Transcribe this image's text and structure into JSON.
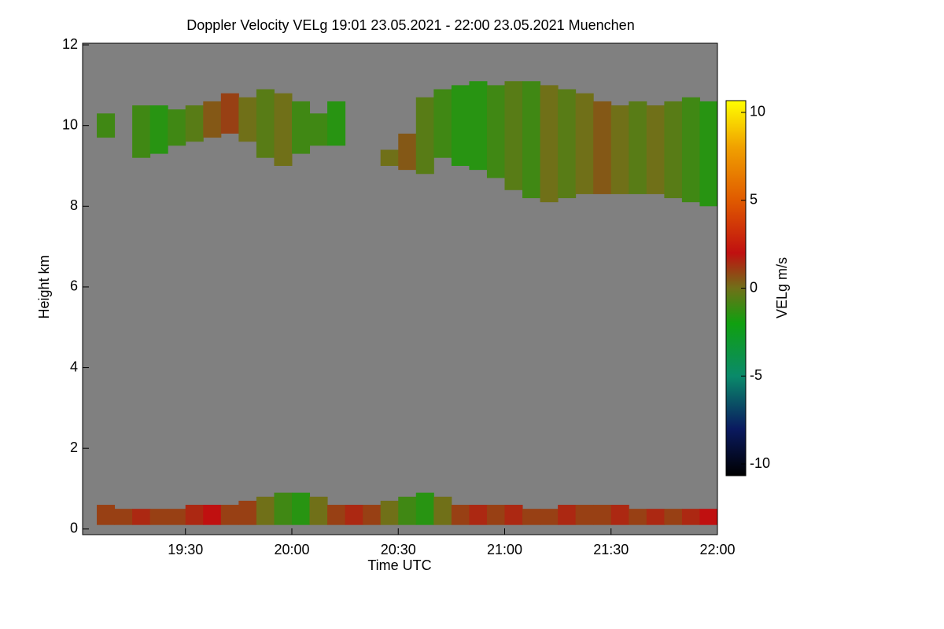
{
  "chart_data": {
    "type": "heatmap",
    "title": "Doppler Velocity VELg   19:01 23.05.2021 - 22:00 23.05.2021 Muenchen",
    "xlabel": "Time UTC",
    "ylabel": "Height km",
    "colorbar_label": "VELg m/s",
    "background": "#808080",
    "xlim": [
      1141,
      1320
    ],
    "xticks": [
      {
        "value": 1170,
        "label": "19:30"
      },
      {
        "value": 1200,
        "label": "20:00"
      },
      {
        "value": 1230,
        "label": "20:30"
      },
      {
        "value": 1260,
        "label": "21:00"
      },
      {
        "value": 1290,
        "label": "21:30"
      },
      {
        "value": 1320,
        "label": "22:00"
      }
    ],
    "ylim": [
      -0.14,
      12.04
    ],
    "yticks": [
      0,
      2,
      4,
      6,
      8,
      10,
      12
    ],
    "zlim": [
      -10.67,
      10.67
    ],
    "zticks": [
      -10,
      -5,
      0,
      5,
      10
    ],
    "colormap": [
      [
        -10.67,
        "#000000"
      ],
      [
        -8,
        "#0a1a60"
      ],
      [
        -5,
        "#0a8a6a"
      ],
      [
        -2,
        "#10a010"
      ],
      [
        0,
        "#707018"
      ],
      [
        2,
        "#c01010"
      ],
      [
        5,
        "#e05a00"
      ],
      [
        8,
        "#f0a000"
      ],
      [
        10.67,
        "#ffff00"
      ]
    ],
    "x_edges": [
      1145,
      1150,
      1155,
      1160,
      1165,
      1170,
      1175,
      1180,
      1185,
      1190,
      1195,
      1200,
      1205,
      1210,
      1215,
      1220,
      1225,
      1230,
      1235,
      1240,
      1245,
      1250,
      1255,
      1260,
      1265,
      1270,
      1275,
      1280,
      1285,
      1290,
      1295,
      1300,
      1305,
      1310,
      1315,
      1320
    ],
    "layers": [
      {
        "base": [
          9.7,
          null,
          9.2,
          9.3,
          9.5,
          9.6,
          9.7,
          9.8,
          9.6,
          9.2,
          9.0,
          9.3,
          9.5,
          9.5,
          null,
          null,
          9.0,
          8.9,
          8.8,
          9.2,
          9.0,
          8.9,
          8.7,
          8.4,
          8.2,
          8.1,
          8.2,
          8.3,
          8.3,
          8.3,
          8.3,
          8.3,
          8.2,
          8.1,
          8.0
        ],
        "top": [
          10.3,
          null,
          10.5,
          10.5,
          10.4,
          10.5,
          10.6,
          10.8,
          10.7,
          10.9,
          10.8,
          10.6,
          10.3,
          10.6,
          null,
          null,
          9.4,
          9.8,
          10.7,
          10.9,
          11.0,
          11.1,
          11.0,
          11.1,
          11.1,
          11.0,
          10.9,
          10.8,
          10.6,
          10.5,
          10.6,
          10.5,
          10.6,
          10.7,
          10.6
        ],
        "velocity": [
          -1,
          null,
          -1,
          -1.5,
          -1,
          -0.5,
          0.5,
          1,
          0,
          -0.5,
          0,
          -1,
          -1,
          -1.5,
          null,
          null,
          0,
          0.5,
          -0.5,
          -1,
          -1.5,
          -1.5,
          -1,
          -0.5,
          -1,
          0,
          -0.5,
          0,
          0.5,
          0,
          -0.5,
          0,
          -0.5,
          -1,
          -1.5
        ]
      },
      {
        "base": [
          0.1,
          0.1,
          0.1,
          0.1,
          0.1,
          0.1,
          0.1,
          0.1,
          0.1,
          0.1,
          0.1,
          0.1,
          0.1,
          0.1,
          0.1,
          0.1,
          0.1,
          0.1,
          0.1,
          0.1,
          0.1,
          0.1,
          0.1,
          0.1,
          0.1,
          0.1,
          0.1,
          0.1,
          0.1,
          0.1,
          0.1,
          0.1,
          0.1,
          0.1,
          0.1
        ],
        "top": [
          0.6,
          0.5,
          0.5,
          0.5,
          0.5,
          0.6,
          0.6,
          0.6,
          0.7,
          0.8,
          0.9,
          0.9,
          0.8,
          0.6,
          0.6,
          0.6,
          0.7,
          0.8,
          0.9,
          0.8,
          0.6,
          0.6,
          0.6,
          0.6,
          0.5,
          0.5,
          0.6,
          0.6,
          0.6,
          0.6,
          0.5,
          0.5,
          0.5,
          0.5,
          0.5
        ],
        "velocity": [
          1,
          1,
          1.5,
          1,
          1,
          1.5,
          2,
          1,
          1,
          0,
          -1,
          -1.5,
          0,
          1,
          1.5,
          1,
          0,
          -1,
          -1.5,
          0,
          1,
          1.5,
          1,
          1.5,
          1,
          1,
          1.5,
          1,
          1,
          1.5,
          1,
          1.5,
          1,
          1.5,
          2
        ]
      }
    ]
  }
}
